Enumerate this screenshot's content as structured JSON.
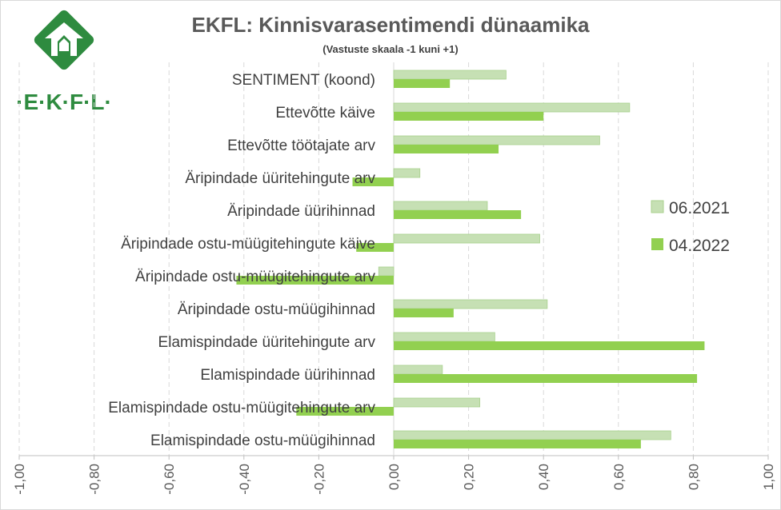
{
  "chart_data": {
    "type": "bar",
    "orientation": "horizontal",
    "title": "EKFL: Kinnisvarasentimendi dünaamika",
    "subtitle": "(Vastuste skaala -1 kuni +1)",
    "categories": [
      "SENTIMENT (koond)",
      "Ettevõtte käive",
      "Ettevõtte töötajate arv",
      "Äripindade üüritehingute arv",
      "Äripindade üürihinnad",
      "Äripindade ostu-müügitehingute käive",
      "Äripindade ostu-müügitehingute arv",
      "Äripindade ostu-müügihinnad",
      "Elamispindade üüritehingute arv",
      "Elamispindade üürihinnad",
      "Elamispindade ostu-müügitehingute arv",
      "Elamispindade ostu-müügihinnad"
    ],
    "series": [
      {
        "name": "06.2021",
        "color": "#c6e0b4",
        "values": [
          0.3,
          0.63,
          0.55,
          0.07,
          0.25,
          0.39,
          -0.04,
          0.41,
          0.27,
          0.13,
          0.23,
          0.74
        ]
      },
      {
        "name": "04.2022",
        "color": "#92d050",
        "values": [
          0.15,
          0.4,
          0.28,
          -0.11,
          0.34,
          -0.1,
          -0.42,
          0.16,
          0.83,
          0.81,
          -0.26,
          0.66
        ]
      }
    ],
    "xlim": [
      -1,
      1
    ],
    "tick_labels": [
      "-1,00",
      "-0,80",
      "-0,60",
      "-0,40",
      "-0,20",
      "0,00",
      "0,20",
      "0,40",
      "0,60",
      "0,80",
      "1,00"
    ],
    "grid": true,
    "legend_position": "right",
    "xlabel": "",
    "ylabel": ""
  },
  "logo": {
    "text": "·E·K·F·L·",
    "color": "#2e8b3f"
  }
}
